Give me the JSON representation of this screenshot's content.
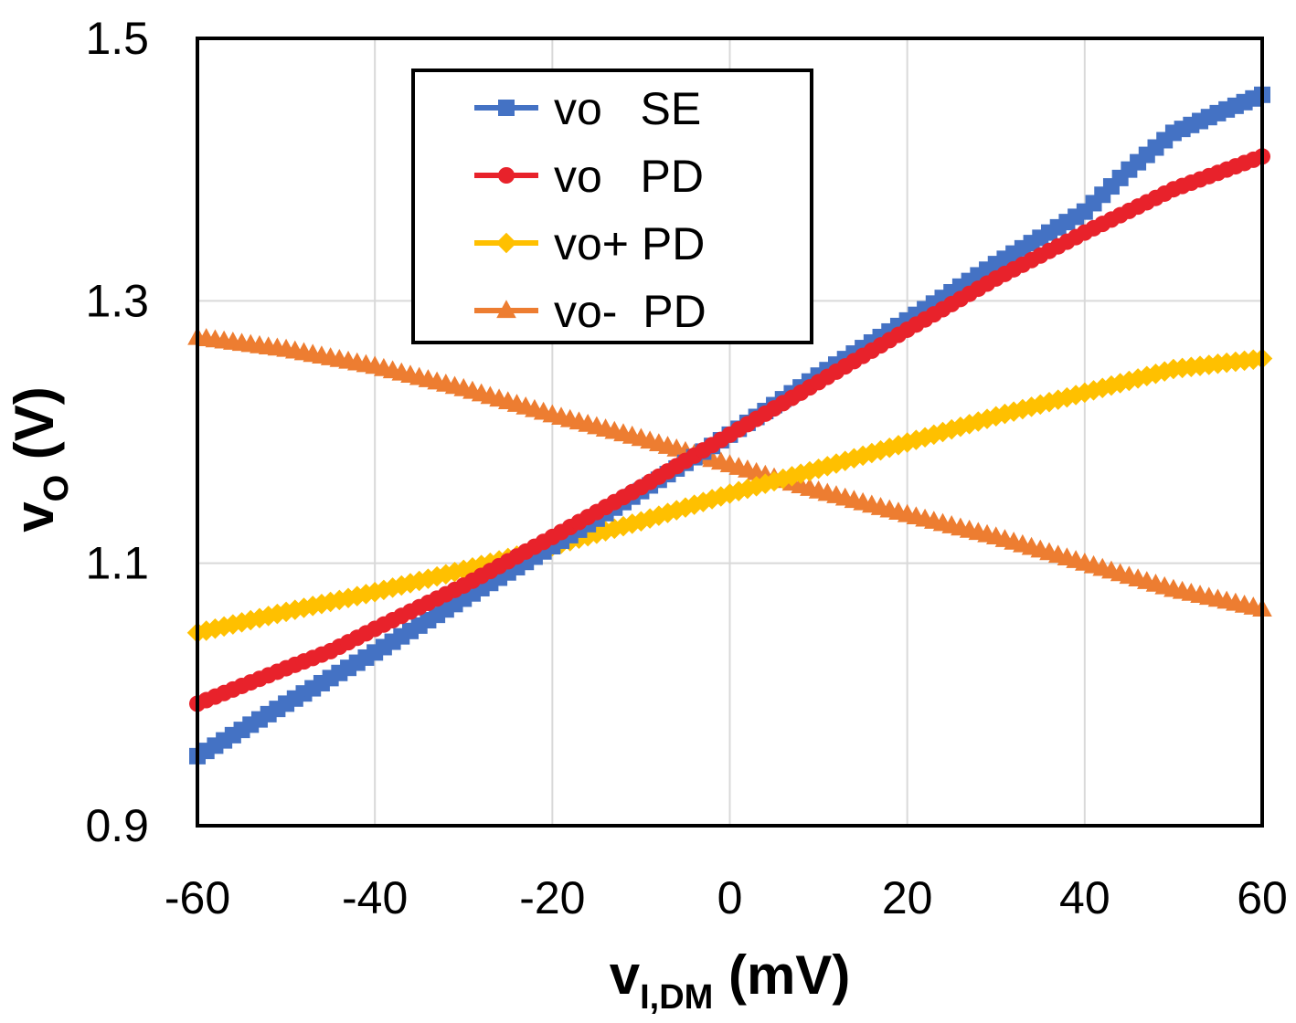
{
  "chart_data": {
    "type": "line",
    "xlabel_main": "v",
    "xlabel_sub": "I,DM",
    "xlabel_unit": " (mV)",
    "ylabel_main": "v",
    "ylabel_sub": "O",
    "ylabel_unit": " (V)",
    "xlim": [
      -60,
      60
    ],
    "ylim": [
      0.9,
      1.5
    ],
    "x_ticks": [
      "-60",
      "-40",
      "-20",
      "0",
      "20",
      "40",
      "60"
    ],
    "y_ticks": [
      "0.9",
      "1.1",
      "1.3",
      "1.5"
    ],
    "grid": true,
    "legend_position": "top-left",
    "series": [
      {
        "name": "vo   SE",
        "color": "#4472C4",
        "marker": "square",
        "points": [
          [
            -60,
            0.953
          ],
          [
            -50,
            0.993
          ],
          [
            -40,
            1.032
          ],
          [
            -30,
            1.073
          ],
          [
            -20,
            1.113
          ],
          [
            -10,
            1.155
          ],
          [
            0,
            1.198
          ],
          [
            10,
            1.243
          ],
          [
            20,
            1.285
          ],
          [
            30,
            1.328
          ],
          [
            40,
            1.368
          ],
          [
            45,
            1.4
          ],
          [
            50,
            1.428
          ],
          [
            55,
            1.443
          ],
          [
            60,
            1.457
          ]
        ]
      },
      {
        "name": "vo   PD",
        "color": "#E8222B",
        "marker": "circle",
        "points": [
          [
            -60,
            0.993
          ],
          [
            -50,
            1.02
          ],
          [
            -45,
            1.033
          ],
          [
            -40,
            1.05
          ],
          [
            -30,
            1.083
          ],
          [
            -20,
            1.12
          ],
          [
            -10,
            1.158
          ],
          [
            0,
            1.198
          ],
          [
            10,
            1.238
          ],
          [
            20,
            1.278
          ],
          [
            30,
            1.317
          ],
          [
            40,
            1.352
          ],
          [
            50,
            1.385
          ],
          [
            60,
            1.41
          ]
        ]
      },
      {
        "name": "vo+ PD",
        "color": "#FFC000",
        "marker": "diamond",
        "points": [
          [
            -60,
            1.047
          ],
          [
            -50,
            1.063
          ],
          [
            -40,
            1.078
          ],
          [
            -30,
            1.095
          ],
          [
            -20,
            1.113
          ],
          [
            -10,
            1.132
          ],
          [
            0,
            1.153
          ],
          [
            10,
            1.172
          ],
          [
            20,
            1.192
          ],
          [
            30,
            1.212
          ],
          [
            40,
            1.23
          ],
          [
            50,
            1.248
          ],
          [
            60,
            1.256
          ]
        ]
      },
      {
        "name": "vo-  PD",
        "color": "#ED7D31",
        "marker": "triangle",
        "points": [
          [
            -60,
            1.272
          ],
          [
            -50,
            1.263
          ],
          [
            -40,
            1.25
          ],
          [
            -30,
            1.233
          ],
          [
            -20,
            1.213
          ],
          [
            -10,
            1.195
          ],
          [
            0,
            1.175
          ],
          [
            10,
            1.155
          ],
          [
            20,
            1.137
          ],
          [
            30,
            1.12
          ],
          [
            40,
            1.1
          ],
          [
            50,
            1.08
          ],
          [
            60,
            1.065
          ]
        ]
      }
    ]
  }
}
